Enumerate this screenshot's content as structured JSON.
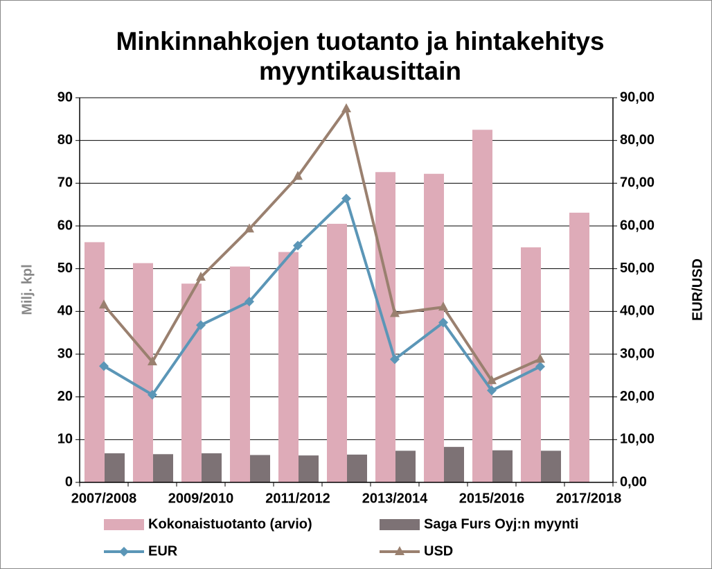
{
  "chart_data": {
    "type": "bar",
    "title": "Minkinnahkojen tuotanto ja hintakehitys myyntikausittain",
    "y_label": "Milj. kpl",
    "y2_label": "EUR/USD",
    "categories": [
      "2007/2008",
      null,
      "2009/2010",
      null,
      "2011/2012",
      null,
      "2013/2014",
      null,
      "2015/2016",
      null,
      "2017/2018"
    ],
    "ylim": [
      0,
      90
    ],
    "yticks": [
      0,
      10,
      20,
      30,
      40,
      50,
      60,
      70,
      80,
      90
    ],
    "y2lim": [
      0,
      90
    ],
    "y2ticks": [
      {
        "value": 0,
        "label": "0,00"
      },
      {
        "value": 10,
        "label": "10,00"
      },
      {
        "value": 20,
        "label": "20,00"
      },
      {
        "value": 30,
        "label": "30,00"
      },
      {
        "value": 40,
        "label": "40,00"
      },
      {
        "value": 50,
        "label": "50,00"
      },
      {
        "value": 60,
        "label": "60,00"
      },
      {
        "value": 70,
        "label": "70,00"
      },
      {
        "value": 80,
        "label": "80,00"
      },
      {
        "value": 90,
        "label": "90,00"
      }
    ],
    "grid": true,
    "series": [
      {
        "name": "Kokonaistuotanto (arvio)",
        "type": "bar",
        "color": "#deabb8",
        "values": [
          56.2,
          51.3,
          46.5,
          50.5,
          53.9,
          60.5,
          72.6,
          72.2,
          82.5,
          55.0,
          63.1
        ]
      },
      {
        "name": "Saga Furs Oyj:n myynti",
        "type": "bar",
        "color": "#7d7275",
        "values": [
          6.8,
          6.6,
          6.8,
          6.4,
          6.3,
          6.5,
          7.4,
          8.3,
          7.5,
          7.4,
          null
        ]
      },
      {
        "name": "EUR",
        "type": "line",
        "marker": "diamond",
        "axis": "y2",
        "color": "#5b96b7",
        "values": [
          27.2,
          20.5,
          36.8,
          42.3,
          55.4,
          66.4,
          28.8,
          37.4,
          21.5,
          27.1,
          null
        ]
      },
      {
        "name": "USD",
        "type": "line",
        "marker": "triangle",
        "axis": "y2",
        "color": "#9a806f",
        "values": [
          41.5,
          28.2,
          48.0,
          59.3,
          71.6,
          87.4,
          39.5,
          41.0,
          23.8,
          28.8,
          null
        ]
      }
    ]
  }
}
